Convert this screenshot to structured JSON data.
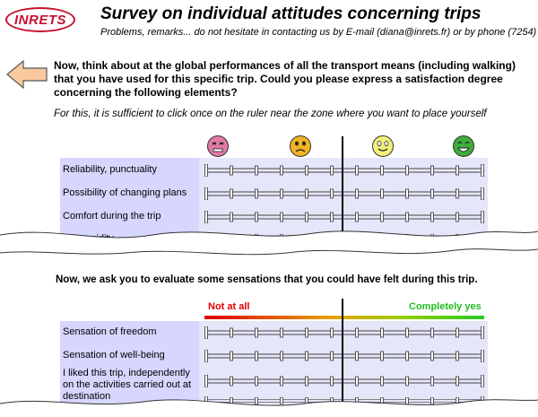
{
  "header": {
    "logo_text": "INRETS",
    "title": "Survey on individual attitudes concerning trips",
    "subtitle": "Problems, remarks... do not hesitate in contacting us by E-mail (diana@inrets.fr) or by phone (7254)"
  },
  "section1": {
    "question": "Now, think about at the global performances of all the transport means (including walking) that you have used for this specific trip. Could you please express a satisfaction degree concerning the following elements?",
    "instruction": "For this, it is sufficient to click once on the ruler near the zone where you want to place yourself",
    "faces": [
      "angry-face-icon",
      "frowning-face-icon",
      "neutral-smile-face-icon",
      "happy-face-icon"
    ],
    "items": [
      {
        "label": "Reliability, punctuality"
      },
      {
        "label": "Possibility of changing plans"
      },
      {
        "label": "Comfort during the trip"
      },
      {
        "label": "Trip rapidity"
      }
    ]
  },
  "section2": {
    "heading": "Now, we ask you to evaluate some sensations that you could have felt during this trip.",
    "scale_left": "Not at all",
    "scale_right": "Completely yes",
    "items": [
      {
        "label": "Sensation of freedom"
      },
      {
        "label": "Sensation of well-being"
      },
      {
        "label": "I liked this trip, independently on the activities carried out at destination"
      }
    ]
  },
  "colors": {
    "label_bg": "#d6d6ff",
    "ruler_bg": "#e6e6fa",
    "brand_red": "#c8102e",
    "scale_red": "#e00000",
    "scale_green": "#1fbf1f"
  }
}
